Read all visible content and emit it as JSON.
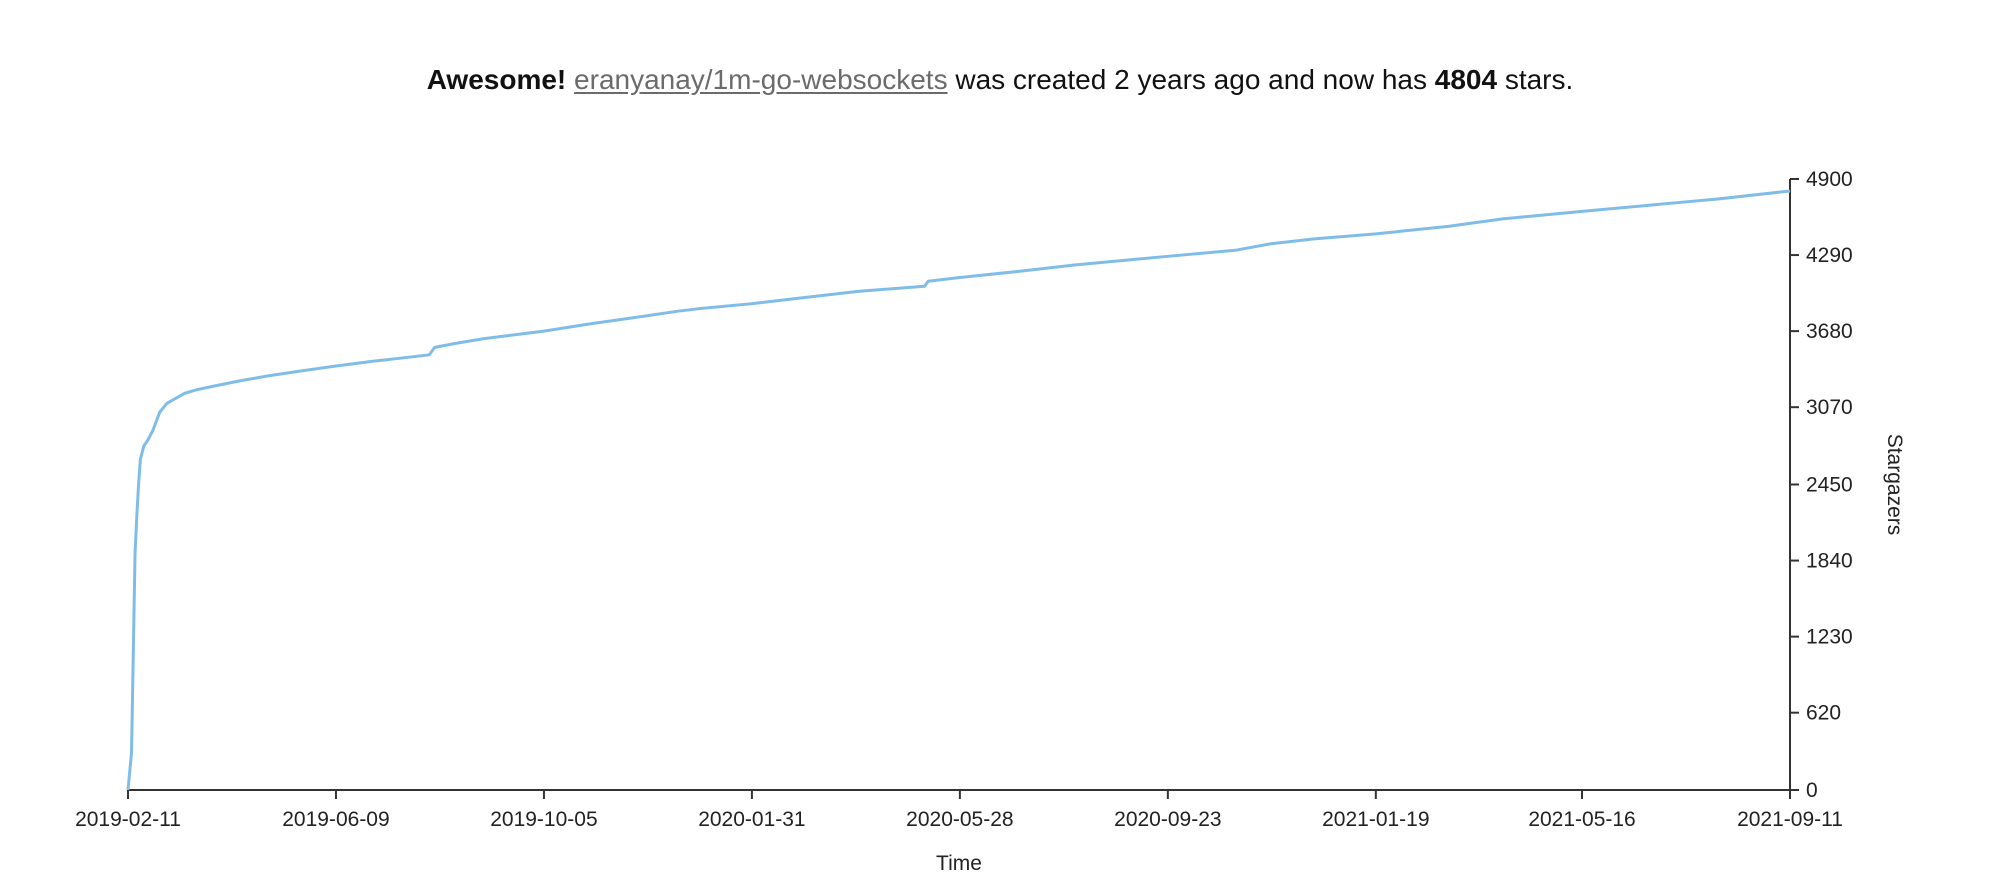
{
  "header": {
    "prefix": "Awesome!",
    "repo_link": "eranyanay/1m-go-websockets",
    "middle": " was created 2 years ago and now has ",
    "stars": "4804",
    "suffix": " stars."
  },
  "colors": {
    "line": "#7fbde8",
    "axis": "#333333",
    "text": "#111111",
    "link": "#6b6b6b"
  },
  "chart_data": {
    "type": "line",
    "title": "",
    "xlabel": "Time",
    "ylabel": "Stargazers",
    "y_axis_position": "right",
    "grid": false,
    "legend": "none",
    "ylim": [
      0,
      4900
    ],
    "xlim": [
      "2019-02-11",
      "2021-09-11"
    ],
    "x_ticks": [
      "2019-02-11",
      "2019-06-09",
      "2019-10-05",
      "2020-01-31",
      "2020-05-28",
      "2020-09-23",
      "2021-01-19",
      "2021-05-16",
      "2021-09-11"
    ],
    "y_ticks": [
      0,
      620,
      1230,
      1840,
      2450,
      3070,
      3680,
      4290,
      4900
    ],
    "series": [
      {
        "x": [
          "2019-02-11",
          "2019-02-13",
          "2019-02-14",
          "2019-02-15",
          "2019-02-16",
          "2019-02-17",
          "2019-02-18",
          "2019-02-20",
          "2019-02-22",
          "2019-02-25",
          "2019-03-01",
          "2019-03-05",
          "2019-03-10",
          "2019-03-15",
          "2019-03-22",
          "2019-04-01",
          "2019-04-15",
          "2019-05-01",
          "2019-05-20",
          "2019-06-09",
          "2019-07-01",
          "2019-07-20",
          "2019-08-01",
          "2019-08-04",
          "2019-08-15",
          "2019-09-01",
          "2019-10-05",
          "2019-11-01",
          "2019-12-01",
          "2019-12-20",
          "2020-01-01",
          "2020-01-31",
          "2020-03-01",
          "2020-04-01",
          "2020-05-08",
          "2020-05-10",
          "2020-05-28",
          "2020-07-01",
          "2020-08-01",
          "2020-09-23",
          "2020-11-01",
          "2020-11-20",
          "2020-12-15",
          "2021-01-19",
          "2021-03-01",
          "2021-04-01",
          "2021-05-16",
          "2021-07-01",
          "2021-08-01",
          "2021-09-11"
        ],
        "y": [
          0,
          300,
          1100,
          1900,
          2200,
          2450,
          2650,
          2760,
          2800,
          2880,
          3030,
          3100,
          3140,
          3180,
          3210,
          3240,
          3280,
          3320,
          3360,
          3400,
          3440,
          3470,
          3490,
          3550,
          3580,
          3620,
          3680,
          3740,
          3800,
          3840,
          3860,
          3900,
          3950,
          4000,
          4040,
          4080,
          4110,
          4160,
          4210,
          4280,
          4330,
          4380,
          4420,
          4460,
          4520,
          4580,
          4640,
          4700,
          4740,
          4804
        ]
      }
    ]
  }
}
